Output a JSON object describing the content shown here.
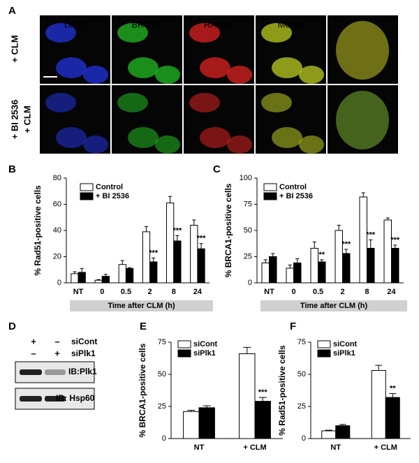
{
  "panels": [
    "A",
    "B",
    "C",
    "D",
    "E",
    "F"
  ],
  "microscopy": {
    "channels": [
      "DAPI",
      "BRCA1",
      "RAD51",
      "Merge"
    ],
    "rows": [
      [
        "+ CLM"
      ],
      [
        "+ BI 2536",
        "+ CLM"
      ]
    ]
  },
  "blot": {
    "lanes": [
      [
        "+",
        "–"
      ],
      [
        "–",
        "+"
      ]
    ],
    "lane_labels": [
      "siCont",
      "siPlk1"
    ],
    "bands": [
      "IB:Plk1",
      "IB: Hsp60"
    ]
  },
  "chart_data": [
    {
      "type": "bar",
      "ylabel": "% Rad51-positive cells",
      "xlabel": "Time after CLM (h)",
      "categories": [
        "NT",
        "0",
        "0.5",
        "2",
        "8",
        "24"
      ],
      "series": [
        {
          "name": "Control",
          "color": "#ffffff",
          "values": [
            7,
            2,
            14,
            39,
            61,
            44
          ],
          "errors": [
            1.5,
            0.5,
            3,
            4,
            5,
            4
          ],
          "annotations": [
            null,
            null,
            null,
            null,
            null,
            null
          ]
        },
        {
          "name": "+ BI 2536",
          "color": "#000000",
          "values": [
            8,
            5,
            11,
            16,
            32,
            26
          ],
          "errors": [
            3,
            1.5,
            0.5,
            3,
            4,
            4
          ],
          "annotations": [
            null,
            null,
            null,
            "***",
            "***",
            "***"
          ]
        }
      ],
      "ylim": [
        0,
        80
      ],
      "yticks": [
        0,
        20,
        40,
        60,
        80
      ]
    },
    {
      "type": "bar",
      "ylabel": "% BRCA1-positive cells",
      "xlabel": "Time after CLM (h)",
      "categories": [
        "NT",
        "0",
        "0.5",
        "2",
        "8",
        "24"
      ],
      "series": [
        {
          "name": "Control",
          "color": "#ffffff",
          "values": [
            19,
            14,
            33,
            50,
            82,
            60
          ],
          "errors": [
            3,
            3,
            6,
            5,
            4,
            2
          ],
          "annotations": [
            null,
            null,
            null,
            null,
            null,
            null
          ]
        },
        {
          "name": "+ BI 2536",
          "color": "#000000",
          "values": [
            25,
            19,
            20,
            28,
            33,
            33
          ],
          "errors": [
            3,
            4,
            2,
            4,
            8,
            3
          ],
          "annotations": [
            null,
            null,
            "**",
            "***",
            "***",
            "***"
          ]
        }
      ],
      "ylim": [
        0,
        100
      ],
      "yticks": [
        0,
        25,
        50,
        75,
        100
      ]
    },
    {
      "type": "bar",
      "ylabel": "% BRCA1-positive cells",
      "categories": [
        "NT",
        "+ CLM"
      ],
      "series": [
        {
          "name": "siCont",
          "color": "#ffffff",
          "values": [
            21,
            66
          ],
          "errors": [
            1,
            5
          ],
          "annotations": [
            null,
            null
          ]
        },
        {
          "name": "siPlk1",
          "color": "#000000",
          "values": [
            24,
            29
          ],
          "errors": [
            1.5,
            3
          ],
          "annotations": [
            null,
            "***"
          ]
        }
      ],
      "ylim": [
        0,
        75
      ],
      "yticks": [
        0,
        25,
        50,
        75
      ]
    },
    {
      "type": "bar",
      "ylabel": "% Rad51-positive cells",
      "categories": [
        "NT",
        "+ CLM"
      ],
      "series": [
        {
          "name": "siCont",
          "color": "#ffffff",
          "values": [
            6,
            53
          ],
          "errors": [
            0.5,
            4
          ],
          "annotations": [
            null,
            null
          ]
        },
        {
          "name": "siPlk1",
          "color": "#000000",
          "values": [
            10,
            32
          ],
          "errors": [
            1,
            3
          ],
          "annotations": [
            null,
            "**"
          ]
        }
      ],
      "ylim": [
        0,
        75
      ],
      "yticks": [
        0,
        25,
        50,
        75
      ]
    }
  ]
}
